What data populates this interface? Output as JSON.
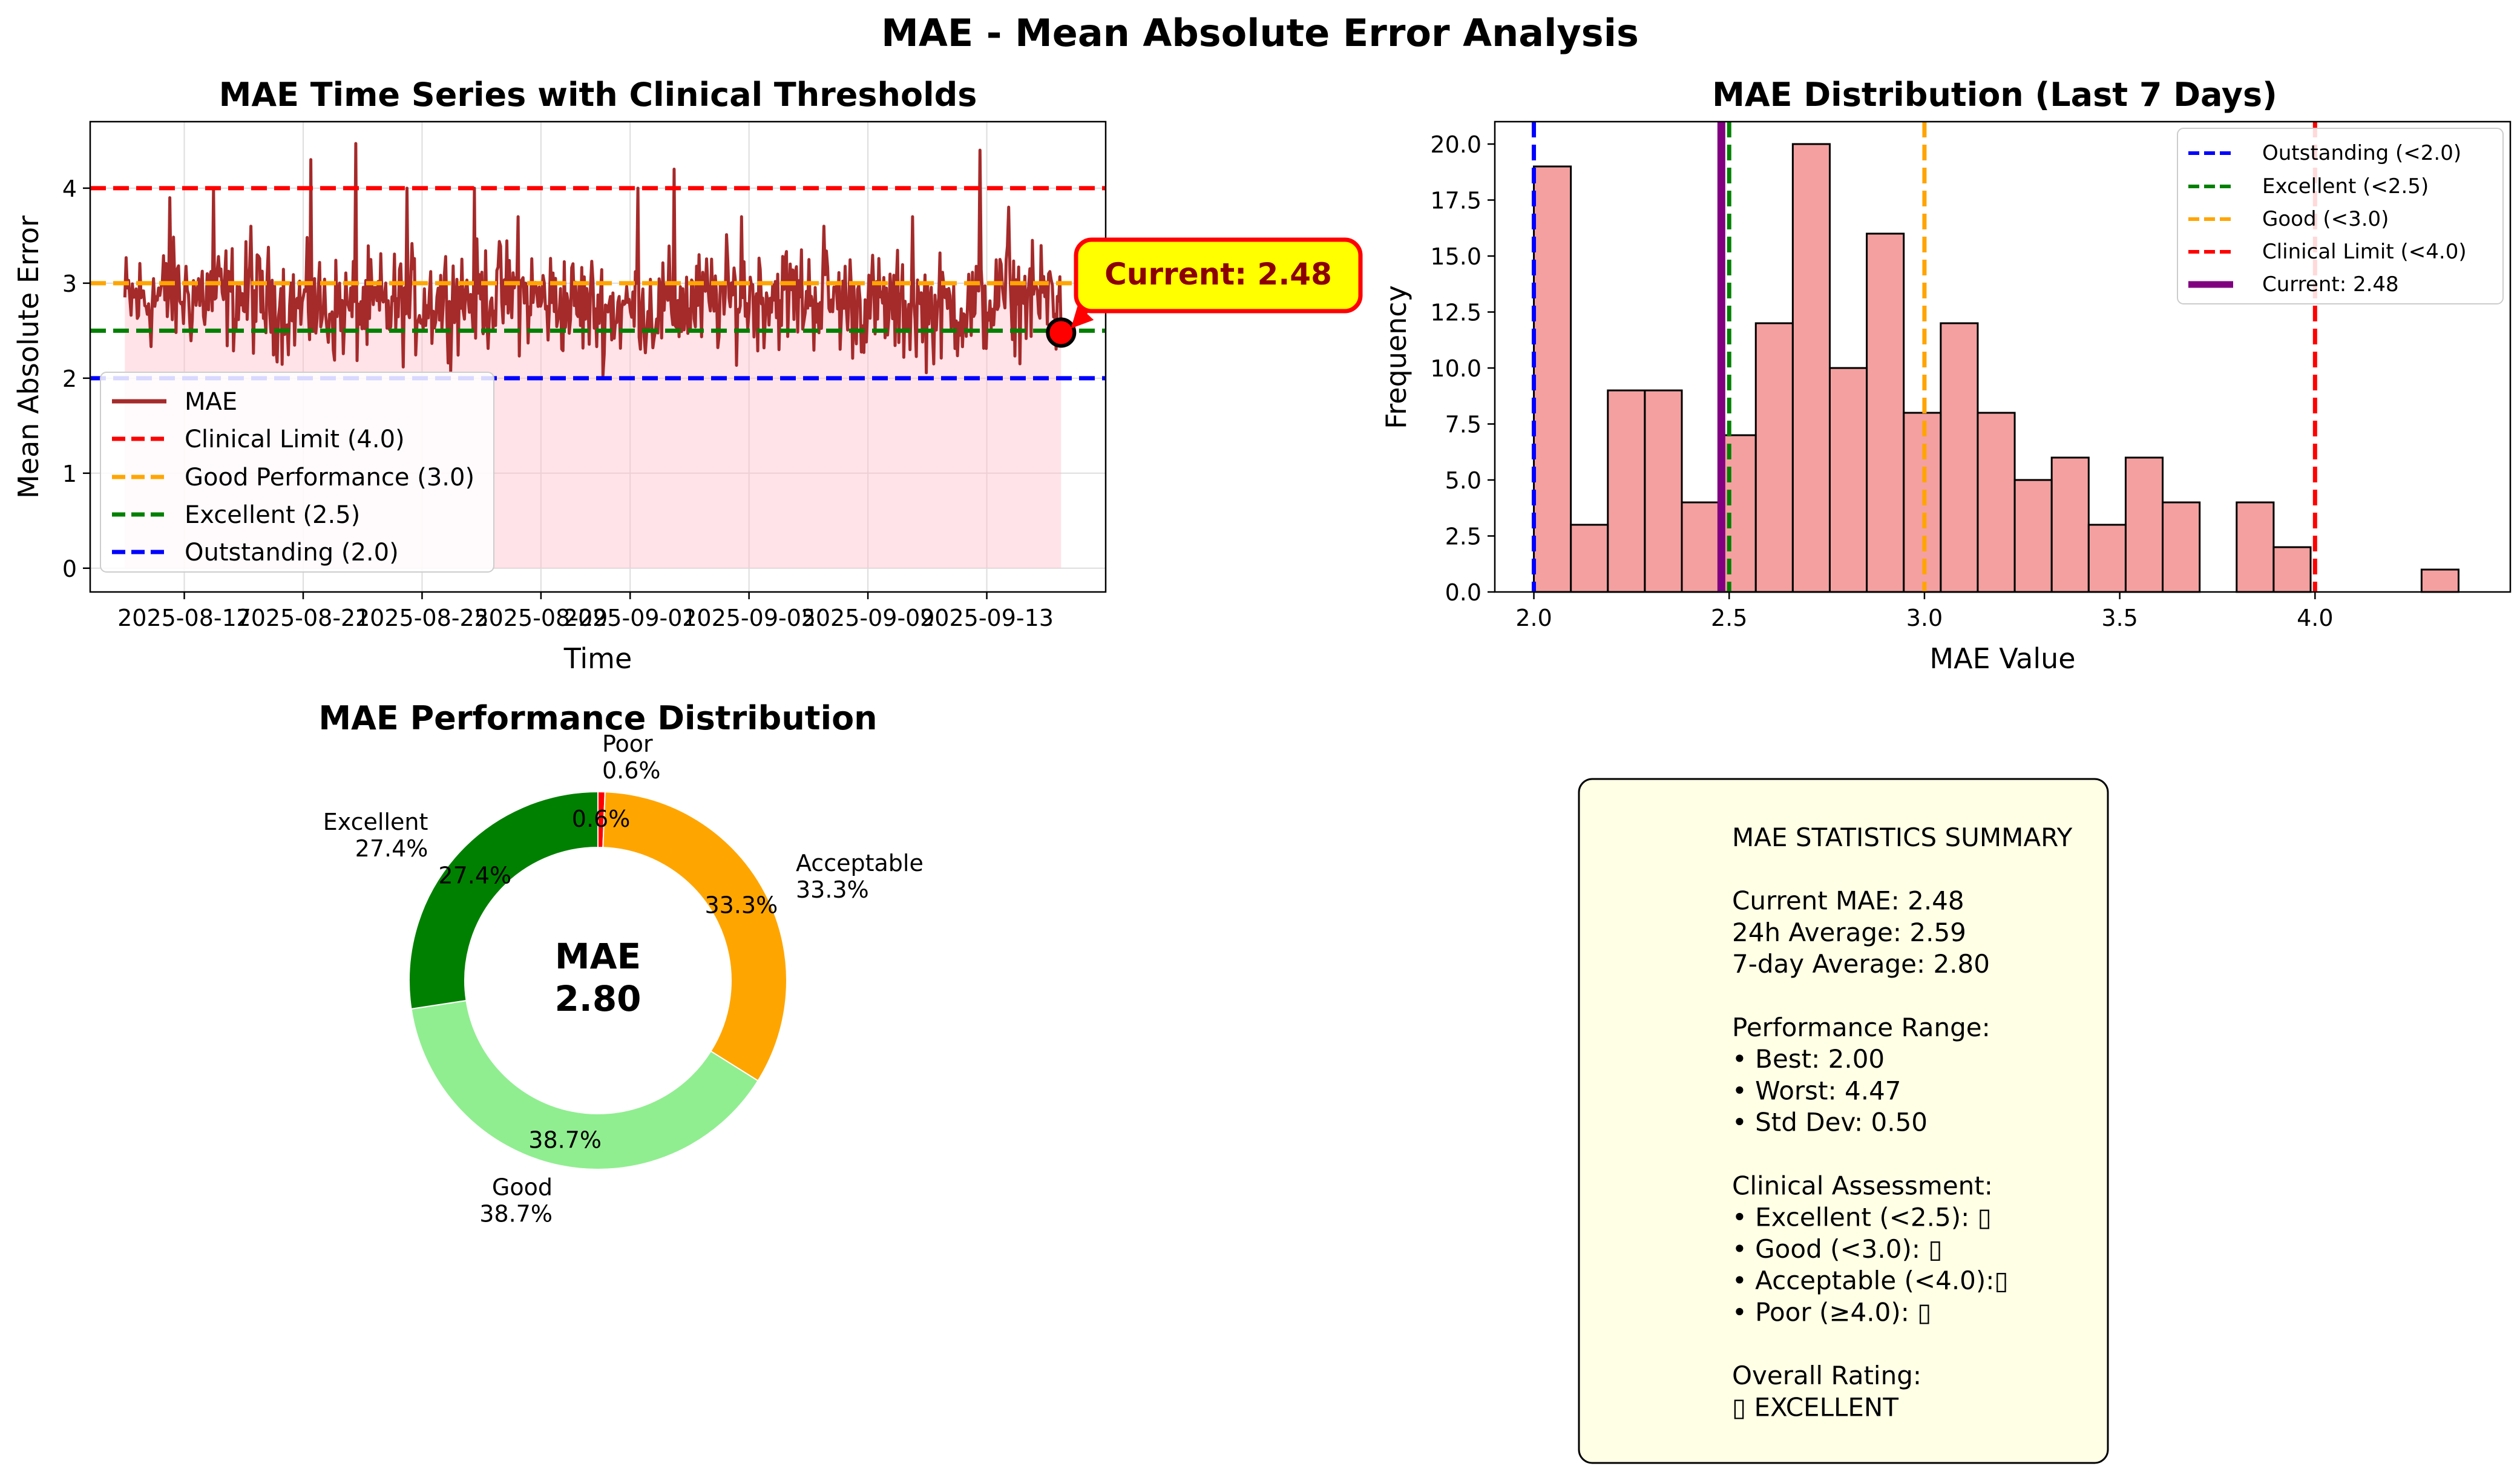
{
  "figure": {
    "suptitle": "MAE - Mean Absolute Error Analysis"
  },
  "colors": {
    "mae_line": "#a52a2a",
    "mae_fill": "#ffc0cb",
    "clinical": "#ff0000",
    "good": "#ffa500",
    "excellent": "#008000",
    "outstanding": "#0000ff",
    "current": "#800080",
    "hist_bar": "#f08080",
    "donut_excellent": "#008000",
    "donut_good": "#90ee90",
    "donut_acceptable": "#ffa500",
    "donut_poor": "#ff0000",
    "callout_fill": "#ffff00",
    "stats_fill": "#ffffe6"
  },
  "chart_data": [
    {
      "id": "timeseries",
      "type": "line",
      "title": "MAE Time Series with Clinical Thresholds",
      "xlabel": "Time",
      "ylabel": "Mean Absolute Error",
      "xlim": [
        "2025-08-13T20:00",
        "2025-09-17T00:00"
      ],
      "ylim": [
        -0.25,
        4.7
      ],
      "x_ticks": [
        "2025-08-17",
        "2025-08-21",
        "2025-08-25",
        "2025-08-29",
        "2025-09-01",
        "2025-09-05",
        "2025-09-09",
        "2025-09-13"
      ],
      "y_ticks": [
        0,
        1,
        2,
        3,
        4
      ],
      "grid": true,
      "legend_position": "lower-left",
      "series": {
        "name": "MAE",
        "start": "2025-08-15T00:00",
        "end": "2025-09-15T12:00",
        "floor": 2.0,
        "baseline_level": 2.8,
        "spikes": [
          [
            "2025-08-16T12:00",
            3.9
          ],
          [
            "2025-08-18T00:00",
            4.0
          ],
          [
            "2025-08-19T06:00",
            3.6
          ],
          [
            "2025-08-21T06:00",
            4.3
          ],
          [
            "2025-08-22T18:00",
            4.47
          ],
          [
            "2025-08-24T12:00",
            4.0
          ],
          [
            "2025-08-26T18:00",
            4.0
          ],
          [
            "2025-08-28T06:00",
            3.7
          ],
          [
            "2025-09-01T06:00",
            4.0
          ],
          [
            "2025-09-02T12:00",
            4.2
          ],
          [
            "2025-09-04T18:00",
            3.7
          ],
          [
            "2025-09-07T12:00",
            3.6
          ],
          [
            "2025-09-10T12:00",
            3.7
          ],
          [
            "2025-09-12T18:00",
            4.4
          ],
          [
            "2025-09-13T18:00",
            3.8
          ]
        ]
      },
      "thresholds": [
        {
          "label": "Clinical Limit (4.0)",
          "value": 4.0,
          "color": "#ff0000"
        },
        {
          "label": "Good Performance (3.0)",
          "value": 3.0,
          "color": "#ffa500"
        },
        {
          "label": "Excellent (2.5)",
          "value": 2.5,
          "color": "#008000"
        },
        {
          "label": "Outstanding (2.0)",
          "value": 2.0,
          "color": "#0000ff"
        }
      ],
      "current": {
        "x": "2025-09-15T12:00",
        "y": 2.48,
        "label": "Current: 2.48"
      }
    },
    {
      "id": "histogram",
      "type": "bar",
      "title": "MAE Distribution (Last 7 Days)",
      "xlabel": "MAE Value",
      "ylabel": "Frequency",
      "xlim": [
        1.9,
        4.5
      ],
      "ylim": [
        0,
        21
      ],
      "x_ticks": [
        2.0,
        2.5,
        3.0,
        3.5,
        4.0
      ],
      "y_ticks": [
        0.0,
        2.5,
        5.0,
        7.5,
        10.0,
        12.5,
        15.0,
        17.5,
        20.0
      ],
      "y_tick_labels": [
        "0.0",
        "2.5",
        "5.0",
        "7.5",
        "10.0",
        "12.5",
        "15.0",
        "17.5",
        "20.0"
      ],
      "x_tick_labels": [
        "2.0",
        "2.5",
        "3.0",
        "3.5",
        "4.0"
      ],
      "bin_start": 2.0,
      "bin_width": 0.0947,
      "counts": [
        19,
        3,
        9,
        9,
        4,
        7,
        12,
        20,
        10,
        16,
        8,
        12,
        8,
        5,
        6,
        3,
        6,
        4,
        0,
        4,
        2,
        0,
        0,
        0,
        1
      ],
      "legend_position": "upper-right",
      "vlines": [
        {
          "label": "Outstanding (<2.0)",
          "value": 2.0,
          "color": "#0000ff",
          "style": "dashed"
        },
        {
          "label": "Excellent (<2.5)",
          "value": 2.5,
          "color": "#008000",
          "style": "dashed"
        },
        {
          "label": "Good (<3.0)",
          "value": 3.0,
          "color": "#ffa500",
          "style": "dashed"
        },
        {
          "label": "Clinical Limit (<4.0)",
          "value": 4.0,
          "color": "#ff0000",
          "style": "dashed"
        },
        {
          "label": "Current: 2.48",
          "value": 2.48,
          "color": "#800080",
          "style": "solid"
        }
      ]
    },
    {
      "id": "donut",
      "type": "pie",
      "title": "MAE Performance Distribution",
      "center_label": "MAE",
      "center_value": "2.80",
      "slices": [
        {
          "name": "Poor",
          "value": 0.6,
          "pct": "0.6%",
          "color": "#ff0000"
        },
        {
          "name": "Acceptable",
          "value": 33.3,
          "pct": "33.3%",
          "color": "#ffa500"
        },
        {
          "name": "Good",
          "value": 38.7,
          "pct": "38.7%",
          "color": "#90ee90"
        },
        {
          "name": "Excellent",
          "value": 27.4,
          "pct": "27.4%",
          "color": "#008000"
        }
      ]
    }
  ],
  "stats_box": {
    "lines": [
      "MAE STATISTICS SUMMARY",
      "",
      "Current MAE:      2.48",
      "24h Average:      2.59",
      "7-day Average:    2.80",
      "",
      "Performance Range:",
      "• Best:           2.00",
      "• Worst:          4.47",
      "• Std Dev:        0.50",
      "",
      "Clinical Assessment:",
      "• Excellent (<2.5): ▯",
      "• Good (<3.0):      ▯",
      "• Acceptable (<4.0):▯",
      "• Poor (≥4.0):      ▯",
      "",
      "Overall Rating:",
      "▯ EXCELLENT"
    ]
  }
}
